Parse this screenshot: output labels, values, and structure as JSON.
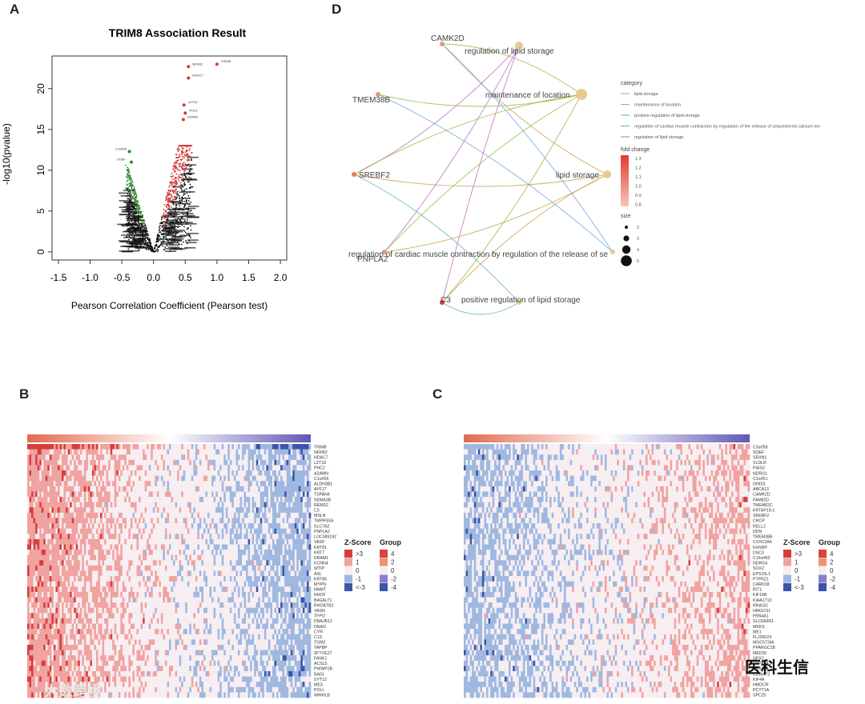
{
  "panels": {
    "a": "A",
    "b": "B",
    "c": "C",
    "d": "D"
  },
  "chart_data": [
    {
      "panel": "A",
      "type": "scatter",
      "title": "TRIM8 Association Result",
      "xlabel": "Pearson Correlation Coefficient (Pearson test)",
      "ylabel": "-log10(pvalue)",
      "xlim": [
        -1.6,
        2.1
      ],
      "ylim": [
        -1,
        24
      ],
      "xticks": [
        "-1.5",
        "-1.0",
        "-0.5",
        "0.0",
        "0.5",
        "1.0",
        "1.5",
        "2.0"
      ],
      "yticks": [
        "0",
        "5",
        "10",
        "15",
        "20"
      ],
      "colors": {
        "neutral": "#111111",
        "positive": "#d43a3a",
        "negative": "#2e8b2e"
      },
      "highlighted": [
        {
          "label": "TRIM8",
          "x": 1.0,
          "y": 23.0,
          "group": "positive"
        },
        {
          "label": "NFKB2",
          "x": 0.55,
          "y": 22.7,
          "group": "positive"
        },
        {
          "label": "HDAC7",
          "x": 0.55,
          "y": 21.3,
          "group": "positive"
        },
        {
          "label": "LZTS2",
          "x": 0.48,
          "y": 18.0,
          "group": "positive"
        },
        {
          "label": "PHC2",
          "x": 0.5,
          "y": 17.0,
          "group": "positive"
        },
        {
          "label": "A2ANN",
          "x": 0.47,
          "y": 16.2,
          "group": "positive"
        },
        {
          "label": "C3orf58",
          "x": -0.38,
          "y": 12.3,
          "group": "negative"
        },
        {
          "label": "SOEF",
          "x": -0.35,
          "y": 11.0,
          "group": "negative"
        }
      ]
    },
    {
      "panel": "D",
      "type": "network",
      "legend_title": "category",
      "categories": [
        "lipid storage",
        "maintenance of location",
        "positive regulation of lipid storage",
        "regulation of cardiac muscle contraction by regulation of the release of sequestered calcium ion",
        "regulation of lipid storage"
      ],
      "category_colors": [
        "#c9a050",
        "#98b83c",
        "#5fb3b3",
        "#6aa6d8",
        "#c06ac0"
      ],
      "genes": [
        "CAMK2D",
        "TMEM38B",
        "SREBF2",
        "PNPLA2",
        "C3"
      ],
      "terms": [
        "regulation of lipid storage",
        "maintenance of location",
        "lipid storage",
        "regulation of cardiac muscle contraction by regulation of the release of se",
        "positive regulation of lipid storage"
      ],
      "fold_change_title": "fold change",
      "fold_change_ticks": [
        "1.3",
        "1.2",
        "1.1",
        "1.0",
        "0.9",
        "0.8"
      ],
      "size_title": "size",
      "size_ticks": [
        "2",
        "3",
        "4",
        "5"
      ],
      "edges": [
        [
          "CAMK2D",
          "maintenance of location"
        ],
        [
          "CAMK2D",
          "lipid storage"
        ],
        [
          "CAMK2D",
          "regulation of cardiac muscle contraction by regulation of the release of se"
        ],
        [
          "TMEM38B",
          "maintenance of location"
        ],
        [
          "TMEM38B",
          "regulation of cardiac muscle contraction by regulation of the release of se"
        ],
        [
          "SREBF2",
          "regulation of lipid storage"
        ],
        [
          "SREBF2",
          "maintenance of location"
        ],
        [
          "SREBF2",
          "lipid storage"
        ],
        [
          "SREBF2",
          "positive regulation of lipid storage"
        ],
        [
          "PNPLA2",
          "regulation of lipid storage"
        ],
        [
          "PNPLA2",
          "maintenance of location"
        ],
        [
          "PNPLA2",
          "lipid storage"
        ],
        [
          "C3",
          "regulation of lipid storage"
        ],
        [
          "C3",
          "maintenance of location"
        ],
        [
          "C3",
          "lipid storage"
        ],
        [
          "C3",
          "positive regulation of lipid storage"
        ]
      ]
    },
    {
      "panel": "B",
      "type": "heatmap",
      "bias": "left-red",
      "genes": [
        "TRIM8",
        "NFKB2",
        "HDAC7",
        "LZTS2",
        "PHC2",
        "A2AMN",
        "C1orf26",
        "ALDH3B1",
        "AYF17",
        "TSPAN4",
        "SEMA3B",
        "REMS2",
        "C3",
        "MSLN",
        "TMPRSS5",
        "SLC7A2",
        "PNPLA2",
        "LOC389242",
        "VASP",
        "KRT81",
        "KRT7",
        "DRAM1",
        "KCNN4",
        "WTIP",
        "AXL",
        "KRT86",
        "MYPN",
        "NNMT",
        "RHOF",
        "B4GALT1",
        "RHOBTB2",
        "VASN",
        "TFPI2",
        "DNAJB12",
        "DNAI2",
        "CYR",
        "C1S",
        "TGM2",
        "TAPBP",
        "ZFYVE27",
        "FANK1",
        "ACSL5",
        "PWWP2B",
        "BAGI",
        "SYT12",
        "ME3",
        "POLL",
        "WWHLB"
      ],
      "zscore_title": "Z-Score",
      "zscore_labels": [
        ">3",
        "1",
        "0",
        "-1",
        "<-3"
      ],
      "group_title": "Group",
      "group_labels": [
        "4",
        "2",
        "0",
        "-2",
        "-4"
      ]
    },
    {
      "panel": "C",
      "type": "heatmap",
      "bias": "right-red",
      "genes": [
        "C3orf58",
        "SOEF",
        "SRXN1",
        "VLDLR",
        "PIAS3",
        "NDRG1",
        "C1orf51",
        "GINS3",
        "ABCA13",
        "CAMK2D",
        "FAM82D",
        "TMEM62C",
        "KRTAP19-1",
        "SREBF2",
        "CRCP",
        "RELL2",
        "DDN",
        "TMEM38B",
        "CXXC2A4",
        "KHSRP",
        "DSC3",
        "C16orf63",
        "NDRG4",
        "SOX2",
        "EPS15L1",
        "PTPRZ1",
        "CARD18",
        "RIT1",
        "KIF16B",
        "KIAA1713",
        "RRAGD",
        "HMGCS1",
        "FBN4A1",
        "SLC6A3R1",
        "MKKS",
        "ME1",
        "FLJ35024",
        "MGC57346",
        "PPARGC1B",
        "MED30",
        "GPX2",
        "CYP51A1",
        "SESM1",
        "C20orf72",
        "KIF4A",
        "HMGCR",
        "PCYT1A",
        "SPC25"
      ],
      "zscore_title": "Z-Score",
      "zscore_labels": [
        ">3",
        "1",
        "0",
        "-1",
        "<-3"
      ],
      "group_title": "Group",
      "group_labels": [
        "4",
        "2",
        "0",
        "-2",
        "-4"
      ]
    }
  ],
  "watermarks": {
    "left": "大数跨境",
    "right": "医科生信"
  }
}
